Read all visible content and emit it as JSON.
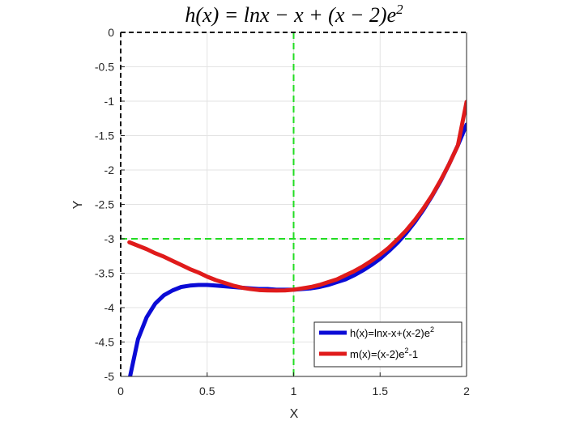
{
  "chart_data": {
    "type": "line",
    "title": "h(x) = lnx − x + (x − 2)e²",
    "xlabel": "X",
    "ylabel": "Y",
    "xlim": [
      0,
      2
    ],
    "ylim": [
      -5,
      0
    ],
    "x_ticks": [
      "0",
      "0.5",
      "1",
      "1.5",
      "2"
    ],
    "y_ticks": [
      "0",
      "-0.5",
      "-1",
      "-1.5",
      "-2",
      "-2.5",
      "-3",
      "-3.5",
      "-4",
      "-4.5",
      "-5"
    ],
    "grid": true,
    "legend_position": "bottom-right",
    "reference_lines": [
      {
        "orientation": "vertical",
        "value": 1,
        "style": "dashed",
        "color": "#22dd22"
      },
      {
        "orientation": "horizontal",
        "value": -3,
        "style": "dashed",
        "color": "#22dd22"
      }
    ],
    "x": [
      0.05,
      0.1,
      0.15,
      0.2,
      0.25,
      0.3,
      0.35,
      0.4,
      0.45,
      0.5,
      0.55,
      0.6,
      0.65,
      0.7,
      0.75,
      0.8,
      0.85,
      0.9,
      0.95,
      1.0,
      1.05,
      1.1,
      1.15,
      1.2,
      1.25,
      1.3,
      1.35,
      1.4,
      1.45,
      1.5,
      1.55,
      1.6,
      1.65,
      1.7,
      1.75,
      1.8,
      1.85,
      1.9,
      1.95,
      2.0
    ],
    "series": [
      {
        "name": "h(x)=lnx-x+(x-2)e²",
        "color": "#0b0bd6",
        "values": [
          -5.05,
          -4.46,
          -4.14,
          -3.94,
          -3.82,
          -3.75,
          -3.7,
          -3.68,
          -3.67,
          -3.67,
          -3.68,
          -3.69,
          -3.7,
          -3.71,
          -3.72,
          -3.73,
          -3.73,
          -3.74,
          -3.74,
          -3.74,
          -3.73,
          -3.72,
          -3.7,
          -3.67,
          -3.63,
          -3.59,
          -3.53,
          -3.46,
          -3.38,
          -3.29,
          -3.18,
          -3.06,
          -2.92,
          -2.76,
          -2.58,
          -2.38,
          -2.16,
          -1.91,
          -1.64,
          -1.34
        ]
      },
      {
        "name": "m(x)=(x-2)e²-1",
        "color": "#e01b1b",
        "values": [
          -3.05,
          -3.1,
          -3.15,
          -3.21,
          -3.26,
          -3.32,
          -3.38,
          -3.44,
          -3.49,
          -3.55,
          -3.6,
          -3.64,
          -3.68,
          -3.71,
          -3.73,
          -3.745,
          -3.75,
          -3.752,
          -3.75,
          -3.74,
          -3.72,
          -3.7,
          -3.67,
          -3.63,
          -3.59,
          -3.53,
          -3.47,
          -3.4,
          -3.32,
          -3.23,
          -3.13,
          -3.01,
          -2.88,
          -2.73,
          -2.56,
          -2.37,
          -2.15,
          -1.91,
          -1.64,
          -1.01
        ]
      }
    ],
    "legend_labels": [
      {
        "base": "h(x)=lnx-x+(x-2)e",
        "sup": "2",
        "tail": ""
      },
      {
        "base": "m(x)=(x-2)e",
        "sup": "2",
        "tail": "-1"
      }
    ]
  }
}
